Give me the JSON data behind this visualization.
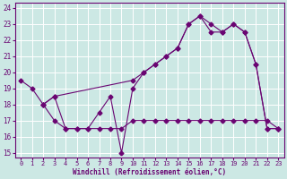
{
  "xlabel": "Windchill (Refroidissement éolien,°C)",
  "xlim": [
    -0.5,
    23.5
  ],
  "ylim": [
    14.7,
    24.3
  ],
  "yticks": [
    15,
    16,
    17,
    18,
    19,
    20,
    21,
    22,
    23,
    24
  ],
  "xticks": [
    0,
    1,
    2,
    3,
    4,
    5,
    6,
    7,
    8,
    9,
    10,
    11,
    12,
    13,
    14,
    15,
    16,
    17,
    18,
    19,
    20,
    21,
    22,
    23
  ],
  "bg_color": "#cce8e4",
  "line_color": "#6a0572",
  "grid_color": "#ffffff",
  "line1_x": [
    0,
    1,
    2,
    3,
    4,
    5,
    6,
    7,
    8,
    9,
    10,
    11,
    12,
    13,
    14,
    15,
    16,
    17,
    18,
    19,
    20,
    21,
    22,
    23
  ],
  "line1_y": [
    19.5,
    19.0,
    18.0,
    18.5,
    16.5,
    16.5,
    16.5,
    17.5,
    18.5,
    15.0,
    19.0,
    20.0,
    20.5,
    21.0,
    21.5,
    23.0,
    23.5,
    22.5,
    22.5,
    23.0,
    22.5,
    20.5,
    16.5,
    16.5
  ],
  "line2_x": [
    2,
    3,
    4,
    5,
    6,
    7,
    8,
    9,
    10,
    11,
    12,
    13,
    14,
    15,
    16,
    17,
    18,
    19,
    20,
    21,
    22,
    23
  ],
  "line2_y": [
    18.0,
    17.0,
    16.5,
    16.5,
    16.5,
    16.5,
    16.5,
    16.5,
    17.0,
    17.0,
    17.0,
    17.0,
    17.0,
    17.0,
    17.0,
    17.0,
    17.0,
    17.0,
    17.0,
    17.0,
    17.0,
    16.5
  ],
  "line3_x": [
    2,
    3,
    10,
    11,
    12,
    13,
    14,
    15,
    16,
    17,
    18,
    19,
    20,
    21,
    22,
    23
  ],
  "line3_y": [
    18.0,
    18.5,
    19.5,
    20.0,
    20.5,
    21.0,
    21.5,
    23.0,
    23.5,
    23.0,
    22.5,
    23.0,
    22.5,
    20.5,
    16.5,
    16.5
  ]
}
